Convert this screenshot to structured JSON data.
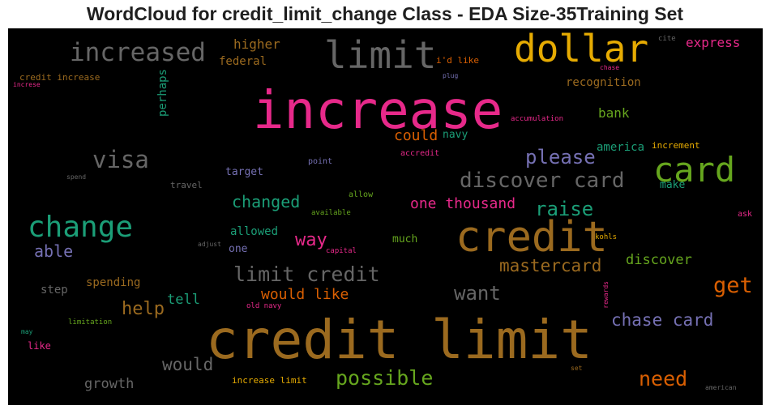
{
  "title": "WordCloud for credit_limit_change Class - EDA Size-35Training Set",
  "words": [
    {
      "text": "credit limit",
      "color": "#9b6a1f"
    },
    {
      "text": "increase",
      "color": "#e7298a"
    },
    {
      "text": "credit",
      "color": "#9b6a1f"
    },
    {
      "text": "dollar",
      "color": "#e6ab02"
    },
    {
      "text": "limit",
      "color": "#666666"
    },
    {
      "text": "card",
      "color": "#66a61e"
    },
    {
      "text": "change",
      "color": "#1b9e77"
    },
    {
      "text": "increased",
      "color": "#666666"
    },
    {
      "text": "visa",
      "color": "#666666"
    },
    {
      "text": "discover card",
      "color": "#666666"
    },
    {
      "text": "possible",
      "color": "#66a61e"
    },
    {
      "text": "limit credit",
      "color": "#666666"
    },
    {
      "text": "get",
      "color": "#d95f02"
    },
    {
      "text": "need",
      "color": "#d95f02"
    },
    {
      "text": "mastercard",
      "color": "#9b6a1f"
    },
    {
      "text": "raise",
      "color": "#1b9e77"
    },
    {
      "text": "please",
      "color": "#7570b3"
    },
    {
      "text": "chase card",
      "color": "#7570b3"
    },
    {
      "text": "way",
      "color": "#e7298a"
    },
    {
      "text": "want",
      "color": "#666666"
    },
    {
      "text": "help",
      "color": "#9b6a1f"
    },
    {
      "text": "would",
      "color": "#666666"
    },
    {
      "text": "changed",
      "color": "#1b9e77"
    },
    {
      "text": "one thousand",
      "color": "#e7298a"
    },
    {
      "text": "able",
      "color": "#7570b3"
    },
    {
      "text": "would like",
      "color": "#d95f02"
    },
    {
      "text": "could",
      "color": "#d95f02"
    },
    {
      "text": "higher",
      "color": "#9b6a1f"
    },
    {
      "text": "tell",
      "color": "#1b9e77"
    },
    {
      "text": "discover",
      "color": "#66a61e"
    },
    {
      "text": "growth",
      "color": "#666666"
    },
    {
      "text": "bank",
      "color": "#66a61e"
    },
    {
      "text": "express",
      "color": "#e7298a"
    },
    {
      "text": "recognition",
      "color": "#9b6a1f"
    },
    {
      "text": "spending",
      "color": "#9b6a1f"
    },
    {
      "text": "step",
      "color": "#666666"
    },
    {
      "text": "federal",
      "color": "#9b6a1f"
    },
    {
      "text": "perhaps",
      "color": "#1b9e77"
    },
    {
      "text": "allowed",
      "color": "#1b9e77"
    },
    {
      "text": "much",
      "color": "#66a61e"
    },
    {
      "text": "america",
      "color": "#1b9e77"
    },
    {
      "text": "navy",
      "color": "#1b9e77"
    },
    {
      "text": "target",
      "color": "#7570b3"
    },
    {
      "text": "one",
      "color": "#7570b3"
    },
    {
      "text": "make",
      "color": "#1b9e77"
    },
    {
      "text": "increment",
      "color": "#e6ab02"
    },
    {
      "text": "credit increase",
      "color": "#9b6a1f"
    },
    {
      "text": "like",
      "color": "#e7298a"
    },
    {
      "text": "increase limit",
      "color": "#e6ab02"
    },
    {
      "text": "i'd like",
      "color": "#d95f02"
    },
    {
      "text": "accredit",
      "color": "#e7298a"
    },
    {
      "text": "point",
      "color": "#7570b3"
    },
    {
      "text": "travel",
      "color": "#666666"
    },
    {
      "text": "allow",
      "color": "#66a61e"
    },
    {
      "text": "ask",
      "color": "#e7298a"
    },
    {
      "text": "kohls",
      "color": "#e6ab02"
    },
    {
      "text": "limitation",
      "color": "#66a61e"
    },
    {
      "text": "available",
      "color": "#66a61e"
    },
    {
      "text": "capital",
      "color": "#e7298a"
    },
    {
      "text": "old navy",
      "color": "#e7298a"
    },
    {
      "text": "accumulation",
      "color": "#e7298a"
    },
    {
      "text": "plug",
      "color": "#7570b3"
    },
    {
      "text": "cite",
      "color": "#666666"
    },
    {
      "text": "chase",
      "color": "#e7298a"
    },
    {
      "text": "increse",
      "color": "#e7298a"
    },
    {
      "text": "spend",
      "color": "#666666"
    },
    {
      "text": "adjust",
      "color": "#666666"
    },
    {
      "text": "may",
      "color": "#1b9e77"
    },
    {
      "text": "set",
      "color": "#9b6a1f"
    },
    {
      "text": "american",
      "color": "#666666"
    },
    {
      "text": "rewards",
      "color": "#e7298a"
    }
  ]
}
